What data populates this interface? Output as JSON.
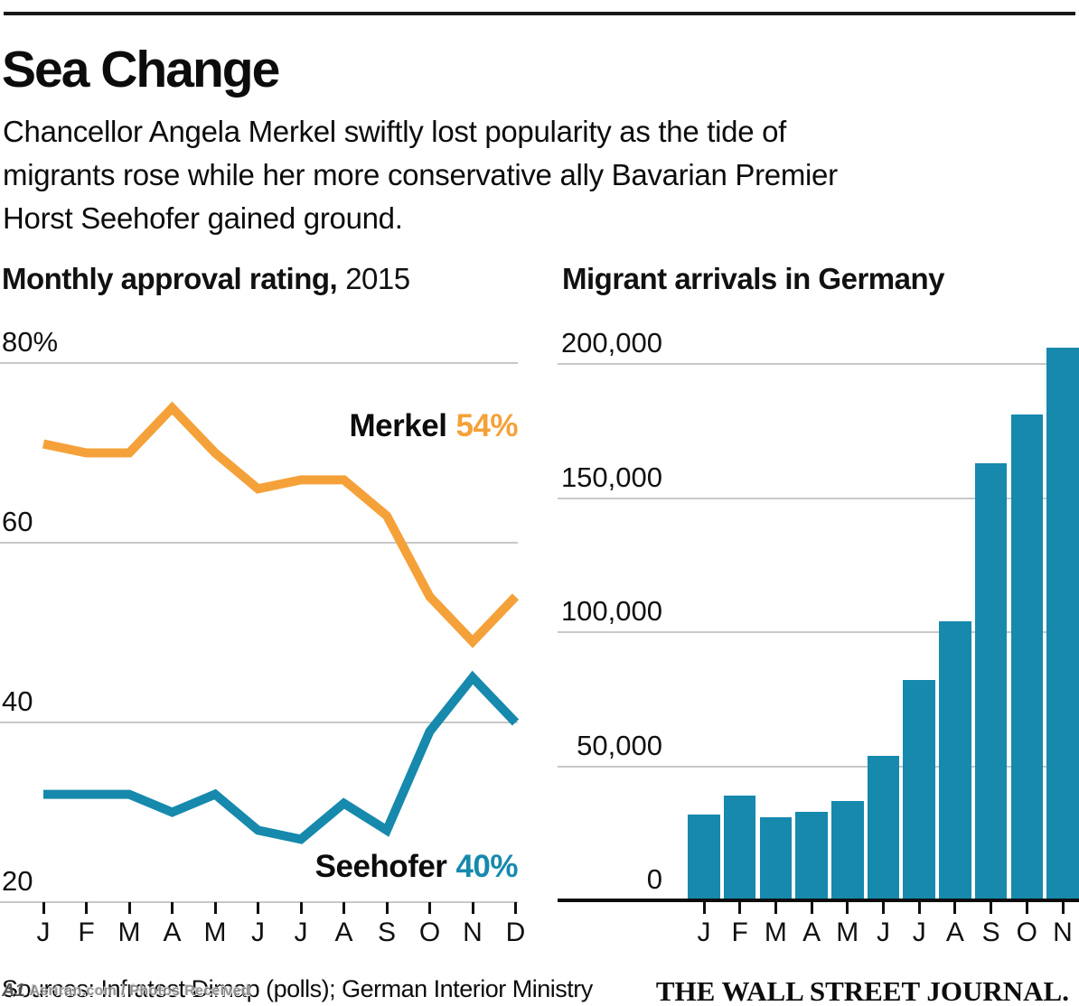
{
  "page": {
    "title": "Sea Change",
    "subtitle_lines": [
      "Chancellor Angela Merkel swiftly lost popularity as the tide of",
      "migrants rose while her more conservative ally Bavarian Premier",
      "Horst Seehofer gained ground."
    ],
    "footer": {
      "sources": "Sources: Infratest Dimap (polls); German Interior Ministry",
      "brand": "THE WALL STREET JOURNAL."
    },
    "watermark": {
      "logo": "A1",
      "text": "Asriran.com / Photos Received"
    }
  },
  "colors": {
    "merkel_orange": "#F5A13A",
    "seehofer_blue": "#1689AD",
    "grid_gray": "#C8C8C8",
    "ink": "#111111"
  },
  "chart_data": [
    {
      "id": "approval-ratings",
      "type": "line",
      "title_bold": "Monthly approval rating,",
      "title_year": "2015",
      "categories": [
        "J",
        "F",
        "M",
        "A",
        "M",
        "J",
        "J",
        "A",
        "S",
        "O",
        "N",
        "D"
      ],
      "unit": "%",
      "ylim": [
        20,
        80
      ],
      "grid": true,
      "y_ticks": [
        {
          "label": "80%",
          "value": 80
        },
        {
          "label": "60",
          "value": 60
        },
        {
          "label": "40",
          "value": 40
        },
        {
          "label": "20",
          "value": 20
        }
      ],
      "series": [
        {
          "name": "Merkel",
          "end_label": "54%",
          "color": "#F5A13A",
          "values": [
            71,
            70,
            70,
            75,
            70,
            66,
            67,
            67,
            63,
            54,
            49,
            54
          ]
        },
        {
          "name": "Seehofer",
          "end_label": "40%",
          "color": "#1689AD",
          "values": [
            32,
            32,
            32,
            30,
            32,
            28,
            27,
            31,
            28,
            39,
            45,
            40
          ]
        }
      ]
    },
    {
      "id": "migrant-arrivals",
      "type": "bar",
      "title": "Migrant arrivals in Germany",
      "categories": [
        "J",
        "F",
        "M",
        "A",
        "M",
        "J",
        "J",
        "A",
        "S",
        "O",
        "N"
      ],
      "values": [
        32000,
        39000,
        31000,
        33000,
        37000,
        54000,
        82000,
        104000,
        163000,
        181000,
        206000
      ],
      "ylim": [
        0,
        210000
      ],
      "grid": true,
      "bar_color": "#1689AD",
      "y_ticks": [
        {
          "label": "200,000",
          "value": 200000
        },
        {
          "label": "150,000",
          "value": 150000
        },
        {
          "label": "100,000",
          "value": 100000
        },
        {
          "label": "50,000",
          "value": 50000
        },
        {
          "label": "0",
          "value": 0
        }
      ]
    }
  ]
}
